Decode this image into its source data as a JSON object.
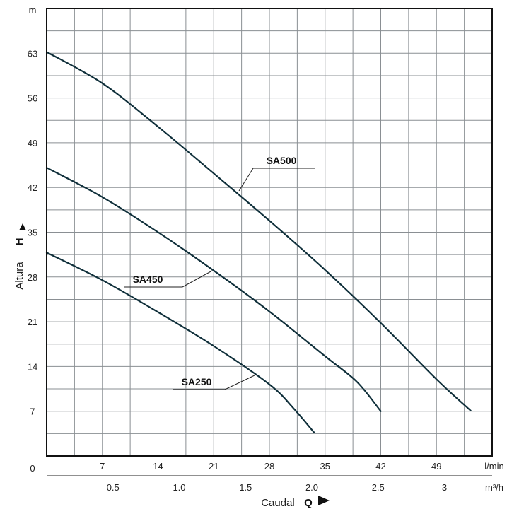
{
  "chart_data": {
    "type": "line",
    "title": "",
    "ylabel": "Altura",
    "ylabel_symbol": "H",
    "xlabel": "Caudal",
    "xlabel_symbol": "Q",
    "y_unit": "m",
    "x_unit_primary": "l/min",
    "x_unit_secondary": "m³/h",
    "origin_label": "0",
    "xlim": [
      0,
      56
    ],
    "ylim": [
      0,
      70
    ],
    "y_ticks": [
      "7",
      "14",
      "21",
      "28",
      "35",
      "42",
      "49",
      "56",
      "63"
    ],
    "x_ticks_primary": [
      "7",
      "14",
      "21",
      "28",
      "35",
      "42",
      "49"
    ],
    "x_ticks_secondary": [
      "0.5",
      "1.0",
      "1.5",
      "2.0",
      "2.5",
      "3"
    ],
    "grid": true,
    "series": [
      {
        "name": "SA500",
        "color": "#0f2f3a",
        "points": [
          [
            0,
            63.2
          ],
          [
            7,
            58.3
          ],
          [
            14,
            51.5
          ],
          [
            21,
            44.2
          ],
          [
            28,
            36.8
          ],
          [
            35,
            29.1
          ],
          [
            42,
            20.8
          ],
          [
            49,
            12.0
          ],
          [
            53.3,
            7.1
          ]
        ]
      },
      {
        "name": "SA450",
        "color": "#0f2f3a",
        "points": [
          [
            0,
            45.1
          ],
          [
            7,
            40.5
          ],
          [
            14,
            35.0
          ],
          [
            21,
            29.0
          ],
          [
            28,
            22.6
          ],
          [
            35,
            15.6
          ],
          [
            39,
            11.6
          ],
          [
            42,
            7.0
          ]
        ]
      },
      {
        "name": "SA250",
        "color": "#0f2f3a",
        "points": [
          [
            0,
            31.8
          ],
          [
            7,
            27.5
          ],
          [
            14,
            22.5
          ],
          [
            21,
            17.2
          ],
          [
            28,
            11.2
          ],
          [
            31,
            7.5
          ],
          [
            33.6,
            3.7
          ]
        ]
      }
    ]
  }
}
